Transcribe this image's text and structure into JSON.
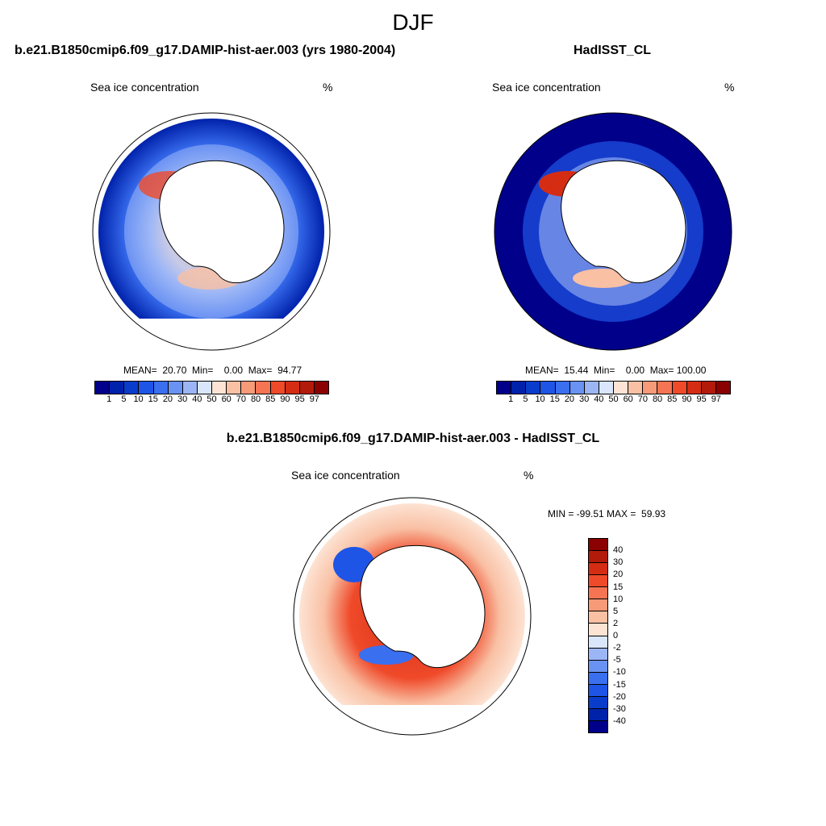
{
  "figure_title": "DJF",
  "panels": {
    "model": {
      "title": "b.e21.B1850cmip6.f09_g17.DAMIP-hist-aer.003 (yrs 1980-2004)",
      "variable": "Sea ice concentration",
      "units": "%",
      "stats": "MEAN=  20.70  Min=    0.00  Max=  94.77",
      "mean": 20.7,
      "min": 0.0,
      "max": 94.77
    },
    "obs": {
      "title": "HadISST_CL",
      "variable": "Sea ice concentration",
      "units": "%",
      "stats": "MEAN=  15.44  Min=    0.00  Max= 100.00",
      "mean": 15.44,
      "min": 0.0,
      "max": 100.0
    },
    "diff": {
      "title": "b.e21.B1850cmip6.f09_g17.DAMIP-hist-aer.003 - HadISST_CL",
      "variable": "Sea ice concentration",
      "units": "%",
      "stats": "MIN = -99.51 MAX =  59.93",
      "min": -99.51,
      "max": 59.93
    }
  },
  "colorbars": {
    "seq": {
      "labels": [
        "1",
        "5",
        "10",
        "15",
        "20",
        "30",
        "40",
        "50",
        "60",
        "70",
        "80",
        "85",
        "90",
        "95",
        "97"
      ],
      "colors": [
        "#00008b",
        "#0022aa",
        "#0a3ccc",
        "#1e55e6",
        "#3a6ff0",
        "#6a92f2",
        "#9cb6f5",
        "#d9e6fb",
        "#fde3d3",
        "#f9c0a4",
        "#f79a78",
        "#f47453",
        "#ef4a2a",
        "#d42d14",
        "#b21a0a",
        "#8b0000"
      ]
    },
    "div": {
      "labels": [
        "40",
        "30",
        "20",
        "15",
        "10",
        "5",
        "2",
        "0",
        "-2",
        "-5",
        "-10",
        "-15",
        "-20",
        "-30",
        "-40"
      ],
      "colors": [
        "#8b0000",
        "#b21a0a",
        "#d42d14",
        "#ef4a2a",
        "#f47453",
        "#f79a78",
        "#f9c0a4",
        "#fde3d3",
        "#d9e6fb",
        "#9cb6f5",
        "#6a92f2",
        "#3a6ff0",
        "#1e55e6",
        "#0a3ccc",
        "#0022aa",
        "#00008b"
      ]
    }
  },
  "colors": {
    "map_outline": "#000000",
    "land": "#ffffff"
  }
}
